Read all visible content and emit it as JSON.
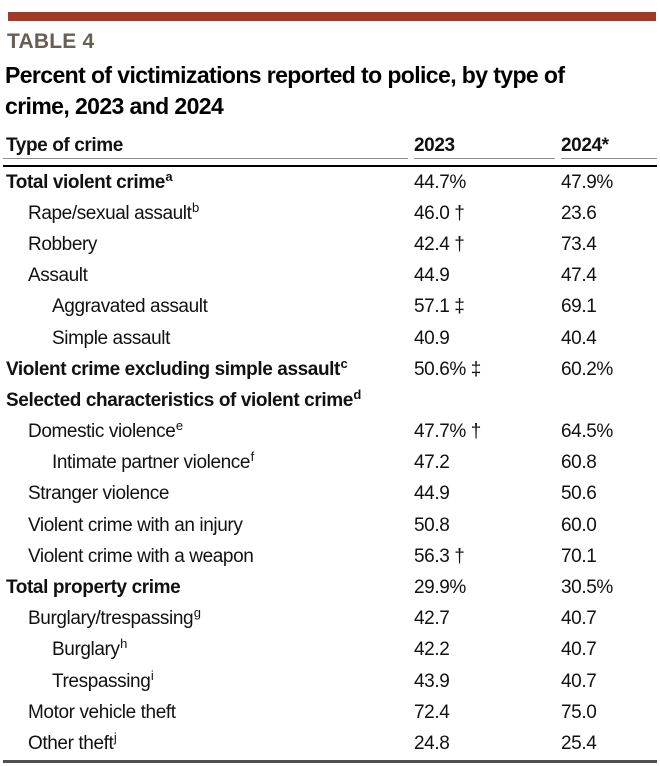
{
  "colors": {
    "accent": "#a33a28",
    "label": "#6a5d52",
    "rule-gray": "#8f8f8f",
    "rule-black": "#000000",
    "rule-bottom": "#4f4f4f",
    "text": "#111111"
  },
  "table_label": "TABLE 4",
  "title_lines": [
    "Percent of victimizations reported to police, by type of",
    "crime, 2023 and 2024"
  ],
  "table": {
    "columns": [
      "Type of crime",
      "2023",
      "2024*"
    ],
    "rows": [
      {
        "label": "Total violent crime",
        "sup": "a",
        "indent": 0,
        "bold": true,
        "v2023": "44.7%",
        "v2024": "47.9%"
      },
      {
        "label": "Rape/sexual assault",
        "sup": "b",
        "indent": 1,
        "bold": false,
        "v2023": "46.0 †",
        "v2024": "23.6"
      },
      {
        "label": "Robbery",
        "sup": "",
        "indent": 1,
        "bold": false,
        "v2023": "42.4 †",
        "v2024": "73.4"
      },
      {
        "label": "Assault",
        "sup": "",
        "indent": 1,
        "bold": false,
        "v2023": "44.9",
        "v2024": "47.4"
      },
      {
        "label": "Aggravated assault",
        "sup": "",
        "indent": 2,
        "bold": false,
        "v2023": "57.1 ‡",
        "v2024": "69.1"
      },
      {
        "label": "Simple assault",
        "sup": "",
        "indent": 2,
        "bold": false,
        "v2023": "40.9",
        "v2024": "40.4"
      },
      {
        "label": "Violent crime excluding simple assault",
        "sup": "c",
        "indent": 0,
        "bold": true,
        "v2023": "50.6% ‡",
        "v2024": "60.2%"
      },
      {
        "label": "Selected characteristics of violent crime",
        "sup": "d",
        "indent": 0,
        "bold": true,
        "v2023": "",
        "v2024": ""
      },
      {
        "label": "Domestic violence",
        "sup": "e",
        "indent": 1,
        "bold": false,
        "v2023": "47.7% †",
        "v2024": "64.5%"
      },
      {
        "label": "Intimate partner violence",
        "sup": "f",
        "indent": 2,
        "bold": false,
        "v2023": "47.2",
        "v2024": "60.8"
      },
      {
        "label": "Stranger violence",
        "sup": "",
        "indent": 1,
        "bold": false,
        "v2023": "44.9",
        "v2024": "50.6"
      },
      {
        "label": "Violent crime with an injury",
        "sup": "",
        "indent": 1,
        "bold": false,
        "v2023": "50.8",
        "v2024": "60.0"
      },
      {
        "label": "Violent crime with a weapon",
        "sup": "",
        "indent": 1,
        "bold": false,
        "v2023": "56.3 †",
        "v2024": "70.1"
      },
      {
        "label": "Total property crime",
        "sup": "",
        "indent": 0,
        "bold": true,
        "v2023": "29.9%",
        "v2024": "30.5%"
      },
      {
        "label": "Burglary/trespassing",
        "sup": "g",
        "indent": 1,
        "bold": false,
        "v2023": "42.7",
        "v2024": "40.7"
      },
      {
        "label": "Burglary",
        "sup": "h",
        "indent": 2,
        "bold": false,
        "v2023": "42.2",
        "v2024": "40.7"
      },
      {
        "label": "Trespassing",
        "sup": "i",
        "indent": 2,
        "bold": false,
        "v2023": "43.9",
        "v2024": "40.7"
      },
      {
        "label": "Motor vehicle theft",
        "sup": "",
        "indent": 1,
        "bold": false,
        "v2023": "72.4",
        "v2024": "75.0"
      },
      {
        "label": "Other theft",
        "sup": "j",
        "indent": 1,
        "bold": false,
        "v2023": "24.8",
        "v2024": "25.4"
      }
    ]
  }
}
